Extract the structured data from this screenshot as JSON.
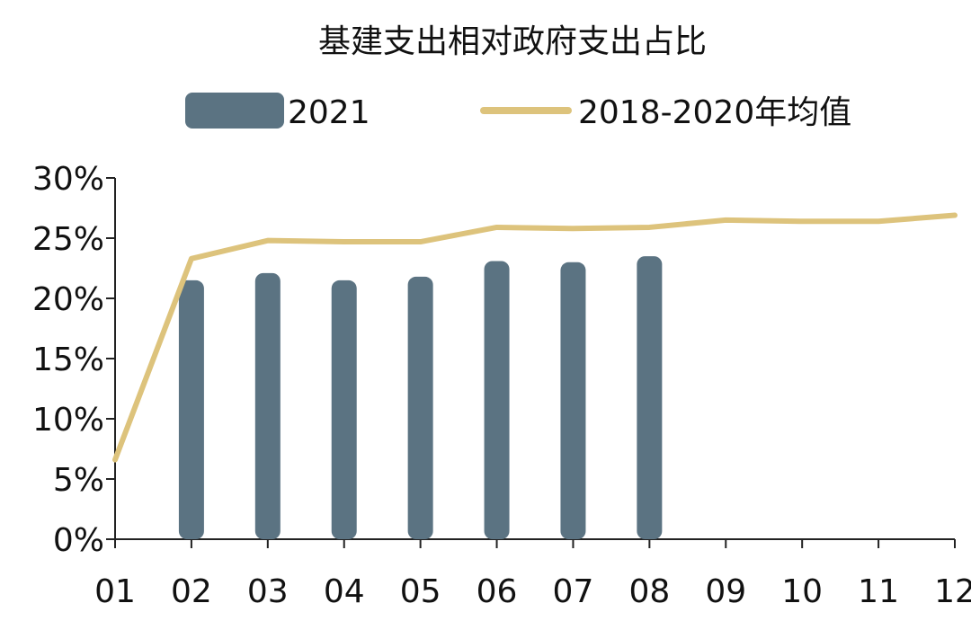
{
  "chart_data": {
    "type": "bar",
    "title": "基建支出相对政府支出占比",
    "xlabel": "",
    "ylabel": "",
    "categories": [
      "01",
      "02",
      "03",
      "04",
      "05",
      "06",
      "07",
      "08",
      "09",
      "10",
      "11",
      "12"
    ],
    "series": [
      {
        "name": "2021",
        "type": "bar",
        "color": "#5b7382",
        "values": [
          null,
          21.5,
          22.1,
          21.5,
          21.8,
          23.1,
          23.0,
          23.5,
          null,
          null,
          null,
          null
        ]
      },
      {
        "name": "2018-2020年均值",
        "type": "line",
        "color": "#ddc37c",
        "values": [
          6.6,
          23.3,
          24.8,
          24.7,
          24.7,
          25.9,
          25.8,
          25.9,
          26.5,
          26.4,
          26.4,
          26.9
        ]
      }
    ],
    "ylim": [
      0,
      30
    ],
    "yticks": [
      "0%",
      "5%",
      "10%",
      "15%",
      "20%",
      "25%",
      "30%"
    ],
    "grid": false,
    "legend_position": "top"
  }
}
